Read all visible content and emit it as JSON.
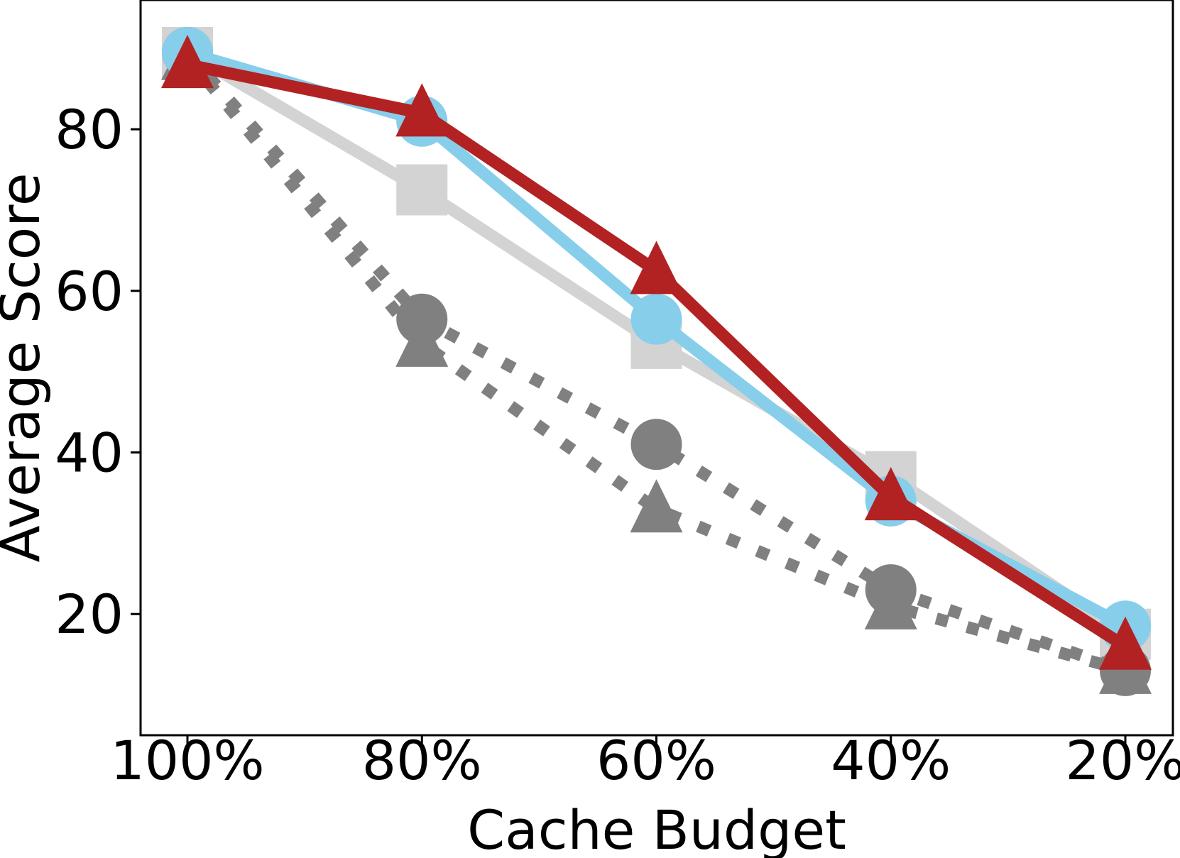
{
  "chart_data": {
    "type": "line",
    "xlabel": "Cache Budget",
    "ylabel": "Average Score",
    "categories": [
      "100%",
      "80%",
      "60%",
      "40%",
      "20%"
    ],
    "ylim": [
      5,
      96
    ],
    "yticks": [
      20,
      40,
      60,
      80
    ],
    "grid": false,
    "series": [
      {
        "values": [
          89.5,
          72.5,
          53.5,
          37.0,
          17.5
        ],
        "color": "#d3d3d3",
        "marker": "square",
        "line_style": "solid"
      },
      {
        "values": [
          89.5,
          56.5,
          41.0,
          23.0,
          13.0
        ],
        "color": "#808080",
        "marker": "circle",
        "line_style": "dotted"
      },
      {
        "values": [
          89.0,
          53.5,
          33.0,
          21.0,
          13.0
        ],
        "color": "#808080",
        "marker": "triangle",
        "line_style": "dotted"
      },
      {
        "values": [
          89.5,
          81.0,
          56.5,
          34.0,
          18.5
        ],
        "color": "#87ceeb",
        "marker": "circle",
        "line_style": "solid"
      },
      {
        "values": [
          88.0,
          82.0,
          62.5,
          34.5,
          16.0
        ],
        "color": "#b22222",
        "marker": "triangle",
        "line_style": "solid"
      }
    ]
  }
}
